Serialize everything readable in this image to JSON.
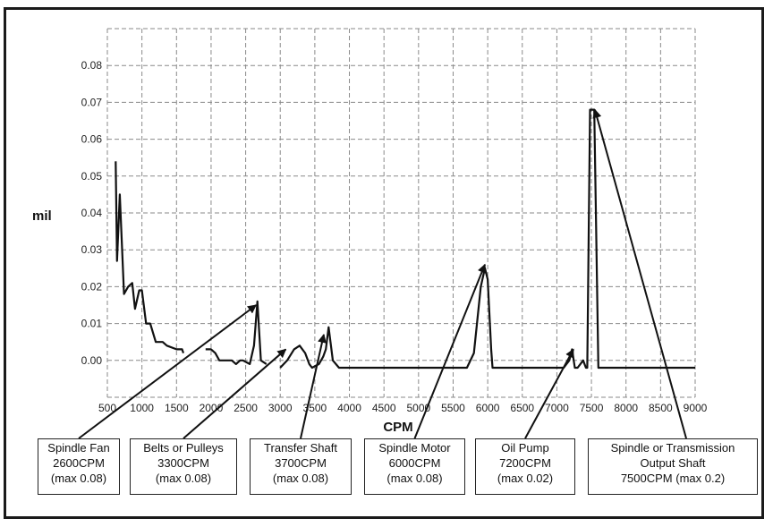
{
  "chart_data": {
    "type": "line",
    "xlabel": "CPM",
    "ylabel": "mil",
    "xlim": [
      500,
      9000
    ],
    "ylim": [
      -0.01,
      0.09
    ],
    "x_ticks": [
      "500",
      "1000",
      "1500",
      "2000",
      "2500",
      "3000",
      "3500",
      "4000",
      "4500",
      "5000",
      "5500",
      "6000",
      "6500",
      "7000",
      "7500",
      "8000",
      "8500",
      "9000"
    ],
    "y_ticks": [
      "0.08",
      "0.07",
      "0.06",
      "0.05",
      "0.04",
      "0.03",
      "0.02",
      "0.01",
      "0.00"
    ],
    "grid": true,
    "series": [
      {
        "segments": [
          [
            [
              620,
              0.054
            ],
            [
              640,
              0.027
            ],
            [
              680,
              0.045
            ],
            [
              740,
              0.018
            ],
            [
              800,
              0.02
            ],
            [
              860,
              0.021
            ],
            [
              900,
              0.014
            ],
            [
              960,
              0.019
            ],
            [
              1000,
              0.019
            ],
            [
              1060,
              0.01
            ],
            [
              1120,
              0.01
            ],
            [
              1200,
              0.005
            ],
            [
              1300,
              0.005
            ],
            [
              1360,
              0.004
            ],
            [
              1500,
              0.003
            ],
            [
              1580,
              0.003
            ],
            [
              1600,
              0.002
            ]
          ],
          [
            [
              1920,
              0.003
            ],
            [
              2000,
              0.003
            ],
            [
              2060,
              0.002
            ],
            [
              2120,
              0.0
            ],
            [
              2200,
              0.0
            ],
            [
              2300,
              0.0
            ],
            [
              2360,
              -0.001
            ],
            [
              2420,
              0.0
            ],
            [
              2460,
              0.0
            ],
            [
              2560,
              -0.001
            ],
            [
              2620,
              0.004
            ],
            [
              2670,
              0.016
            ],
            [
              2720,
              0.0
            ],
            [
              2800,
              -0.001
            ]
          ],
          [
            [
              3000,
              -0.002
            ],
            [
              3100,
              0.0
            ],
            [
              3200,
              0.003
            ],
            [
              3280,
              0.004
            ],
            [
              3360,
              0.002
            ],
            [
              3420,
              -0.001
            ],
            [
              3460,
              -0.002
            ],
            [
              3560,
              -0.001
            ],
            [
              3620,
              0.001
            ],
            [
              3660,
              0.003
            ],
            [
              3700,
              0.009
            ],
            [
              3760,
              0.0
            ],
            [
              3850,
              -0.002
            ],
            [
              4000,
              -0.002
            ],
            [
              4500,
              -0.002
            ],
            [
              5000,
              -0.002
            ],
            [
              5200,
              -0.002
            ],
            [
              5350,
              -0.002
            ],
            [
              5520,
              -0.002
            ],
            [
              5600,
              -0.002
            ],
            [
              5700,
              -0.002
            ],
            [
              5800,
              0.002
            ],
            [
              5900,
              0.02
            ],
            [
              5960,
              0.025
            ],
            [
              6000,
              0.022
            ],
            [
              6050,
              0.003
            ],
            [
              6070,
              -0.002
            ],
            [
              6200,
              -0.002
            ],
            [
              6400,
              -0.002
            ],
            [
              6600,
              -0.002
            ],
            [
              6800,
              -0.002
            ],
            [
              6900,
              -0.002
            ],
            [
              7000,
              -0.002
            ],
            [
              7100,
              -0.002
            ],
            [
              7180,
              0.0
            ],
            [
              7220,
              0.003
            ],
            [
              7260,
              -0.002
            ],
            [
              7300,
              -0.002
            ],
            [
              7380,
              0.0
            ],
            [
              7420,
              -0.002
            ],
            [
              7440,
              -0.002
            ],
            [
              7480,
              0.068
            ],
            [
              7540,
              0.068
            ],
            [
              7600,
              -0.002
            ],
            [
              8000,
              -0.002
            ],
            [
              8500,
              -0.002
            ],
            [
              9000,
              -0.002
            ]
          ]
        ]
      }
    ],
    "annotations": [
      {
        "lines": [
          "Spindle Fan",
          "2600CPM",
          "(max 0.08)"
        ],
        "target": [
          2650,
          0.015
        ]
      },
      {
        "lines": [
          "Belts or Pulleys",
          "3300CPM",
          "(max 0.08)"
        ],
        "target": [
          3080,
          0.003
        ]
      },
      {
        "lines": [
          "Transfer Shaft",
          "3700CPM",
          "(max 0.08)"
        ],
        "target": [
          3630,
          0.007
        ]
      },
      {
        "lines": [
          "Spindle Motor",
          "6000CPM",
          "(max 0.08)"
        ],
        "target": [
          5960,
          0.026
        ]
      },
      {
        "lines": [
          "Oil Pump",
          "7200CPM",
          "(max 0.02)"
        ],
        "target": [
          7240,
          0.003
        ]
      },
      {
        "lines": [
          "Spindle or Transmission",
          "Output Shaft",
          "7500CPM (max 0.2)"
        ],
        "target": [
          7550,
          0.068
        ]
      }
    ]
  }
}
